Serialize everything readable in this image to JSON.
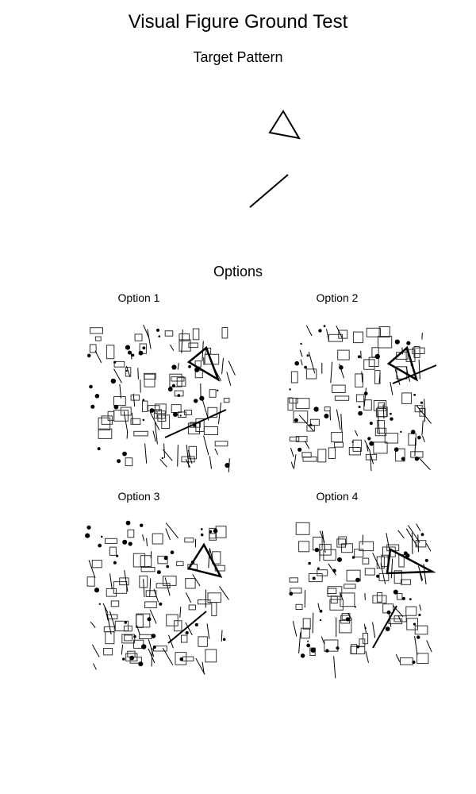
{
  "title": "Visual Figure Ground Test",
  "target": {
    "label": "Target Pattern",
    "shapes": [
      "triangle",
      "line"
    ]
  },
  "options_section": {
    "label": "Options",
    "options": [
      {
        "label": "Option 1"
      },
      {
        "label": "Option 2"
      },
      {
        "label": "Option 3"
      },
      {
        "label": "Option 4"
      }
    ]
  },
  "colors": {
    "ink": "#000000",
    "box_stroke": "#333333",
    "background": "#ffffff"
  }
}
